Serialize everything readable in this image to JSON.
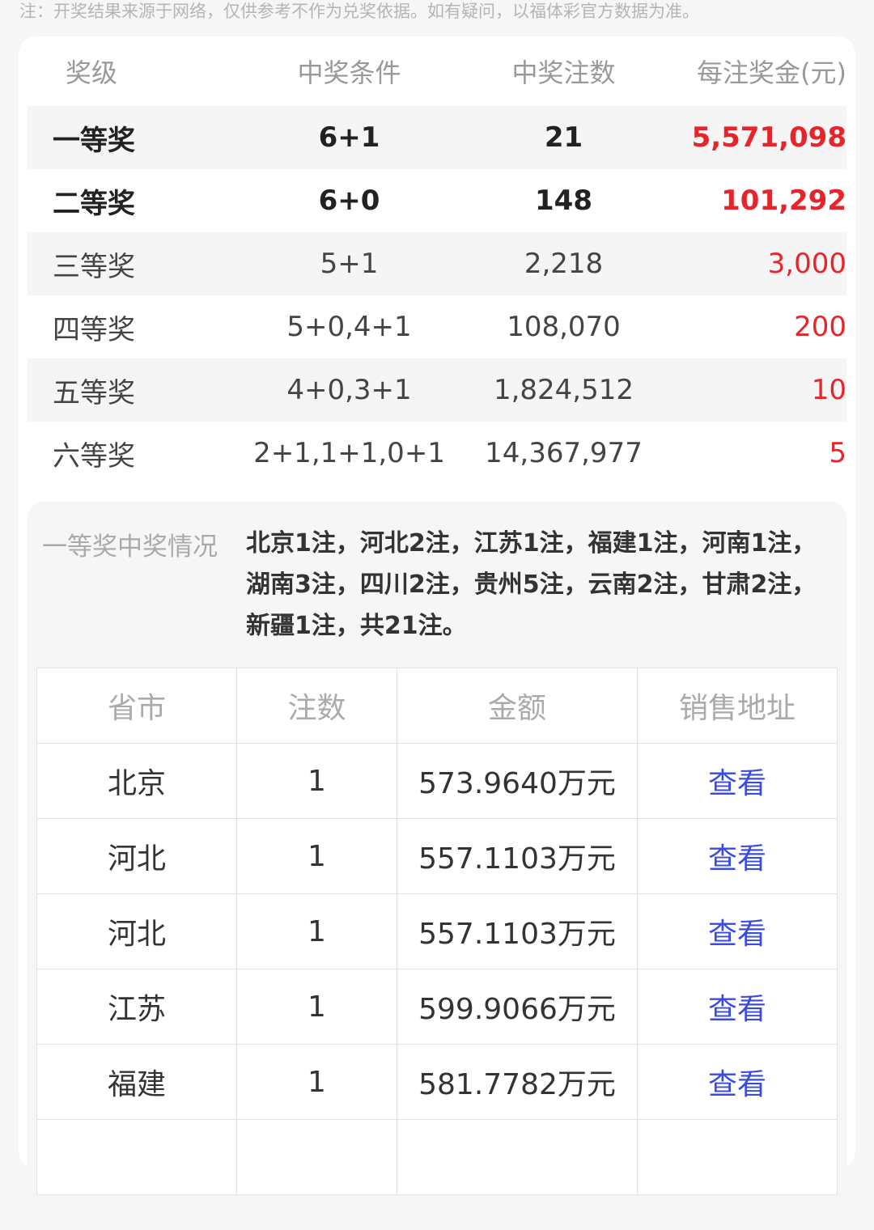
{
  "note": "注：开奖结果来源于网络，仅供参考不作为兑奖依据。如有疑问，以福体彩官方数据为准。",
  "prize_table": {
    "headers": [
      "奖级",
      "中奖条件",
      "中奖注数",
      "每注奖金(元)"
    ],
    "rows": [
      {
        "level": "一等奖",
        "condition": "6+1",
        "count": "21",
        "amount": "5,571,098"
      },
      {
        "level": "二等奖",
        "condition": "6+0",
        "count": "148",
        "amount": "101,292"
      },
      {
        "level": "三等奖",
        "condition": "5+1",
        "count": "2,218",
        "amount": "3,000"
      },
      {
        "level": "四等奖",
        "condition": "5+0,4+1",
        "count": "108,070",
        "amount": "200"
      },
      {
        "level": "五等奖",
        "condition": "4+0,3+1",
        "count": "1,824,512",
        "amount": "10"
      },
      {
        "level": "六等奖",
        "condition": "2+1,1+1,0+1",
        "count": "14,367,977",
        "amount": "5"
      }
    ]
  },
  "first_prize": {
    "label": "一等奖中奖情况",
    "summary": "北京1注，河北2注，江苏1注，福建1注，河南1注，湖南3注，四川2注，贵州5注，云南2注，甘肃2注，新疆1注，共21注。",
    "headers": [
      "省市",
      "注数",
      "金额",
      "销售地址"
    ],
    "rows": [
      {
        "province": "北京",
        "count": "1",
        "amount": "573.9640万元",
        "link": "查看"
      },
      {
        "province": "河北",
        "count": "1",
        "amount": "557.1103万元",
        "link": "查看"
      },
      {
        "province": "河北",
        "count": "1",
        "amount": "557.1103万元",
        "link": "查看"
      },
      {
        "province": "江苏",
        "count": "1",
        "amount": "599.9066万元",
        "link": "查看"
      },
      {
        "province": "福建",
        "count": "1",
        "amount": "581.7782万元",
        "link": "查看"
      }
    ]
  },
  "colors": {
    "amount": "#e8242b",
    "link": "#3a4be0"
  }
}
